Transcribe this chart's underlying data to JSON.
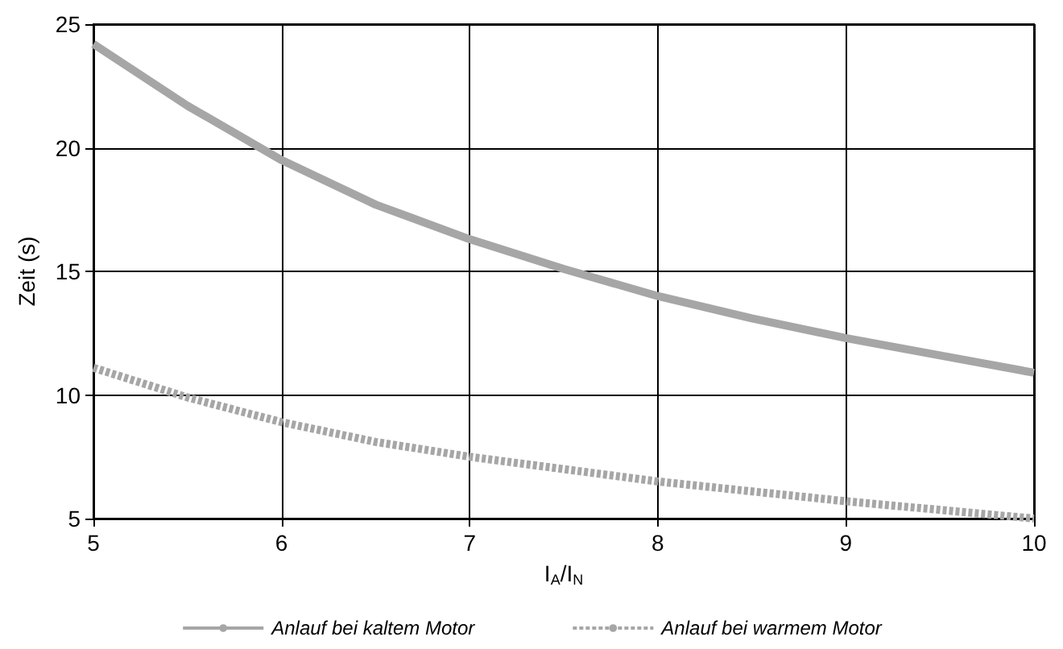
{
  "chart_data": {
    "type": "line",
    "xlabel": "I$_{A}$/I$_{N}$",
    "ylabel": "Zeit (s)",
    "xlim": [
      5,
      10
    ],
    "xticks": [
      5,
      6,
      7,
      8,
      9,
      10
    ],
    "ylim": [
      5,
      25
    ],
    "yticks": [
      5,
      10,
      15,
      20,
      25
    ],
    "grid": true,
    "legend": "bottom",
    "marker": "none",
    "series": [
      {
        "name": "Anlauf bei kaltem Motor",
        "color": "#a6a6a6",
        "line_style": "solid",
        "x": [
          5,
          5.5,
          6,
          6.5,
          7,
          7.5,
          8,
          8.5,
          9,
          9.5,
          10
        ],
        "values": [
          24.2,
          21.7,
          19.5,
          17.7,
          16.3,
          15.1,
          14.0,
          13.1,
          12.3,
          11.6,
          10.9
        ]
      },
      {
        "name": "Anlauf bei warmem Motor",
        "color": "#a6a6a6",
        "line_style": "dashed",
        "x": [
          5,
          5.5,
          6,
          6.5,
          7,
          7.5,
          8,
          8.5,
          9,
          9.5,
          10
        ],
        "values": [
          11.1,
          9.9,
          8.9,
          8.1,
          7.5,
          7.0,
          6.5,
          6.1,
          5.7,
          5.35,
          5.0
        ]
      }
    ]
  }
}
